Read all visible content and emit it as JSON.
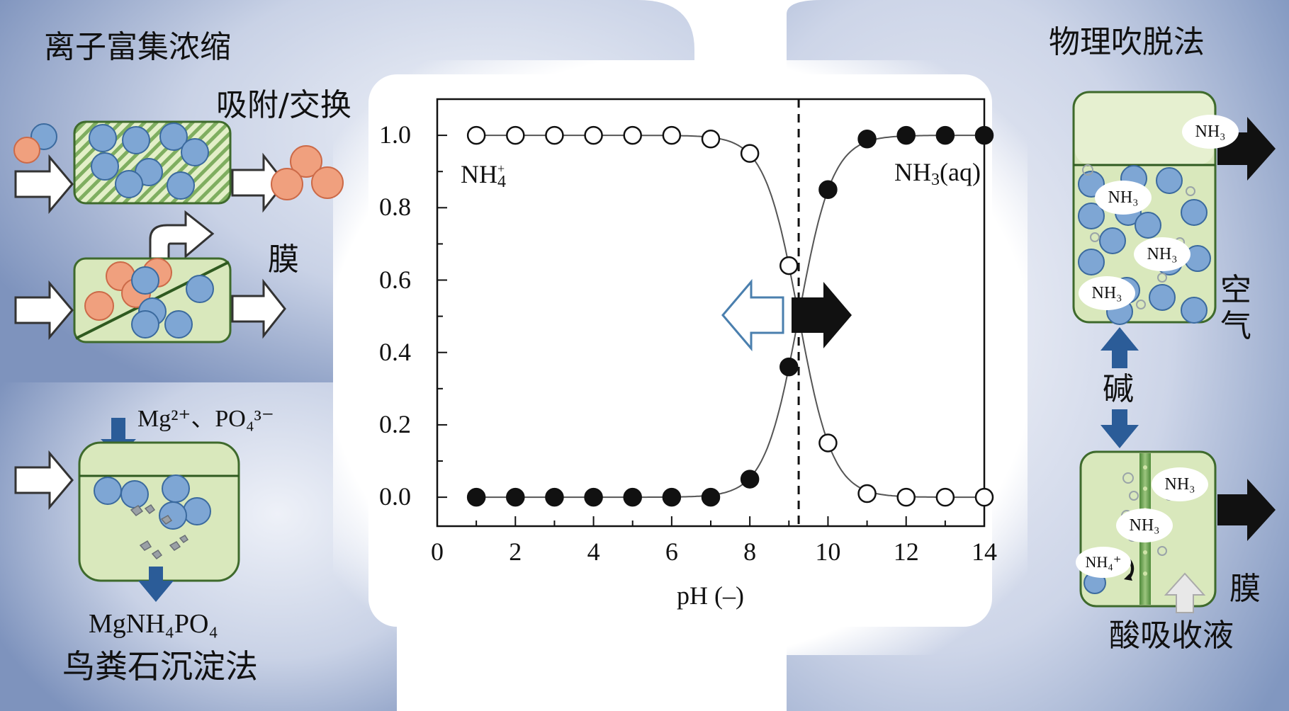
{
  "panels": {
    "ion_enrichment": {
      "title": "离子富集浓缩",
      "adsorption_label": "吸附/交换",
      "membrane_label": "膜"
    },
    "struvite": {
      "reagents": "Mg²⁺、PO₄³⁻",
      "product": "MgNH₄PO₄",
      "title": "鸟粪石沉淀法"
    },
    "stripping": {
      "title": "物理吹脱法",
      "air_label": "空气",
      "base_label": "碱",
      "membrane_label": "膜",
      "acid_label": "酸吸收液",
      "ammonia_tag": "NH₃",
      "ammonium_tag": "NH₄⁺"
    }
  },
  "chart_data": {
    "type": "scatter",
    "xlabel": "pH (–)",
    "ylabel": "",
    "xlim": [
      0,
      14
    ],
    "ylim": [
      -0.08,
      1.1
    ],
    "x_ticks": [
      0,
      2,
      4,
      6,
      8,
      10,
      12,
      14
    ],
    "y_ticks": [
      0.0,
      0.2,
      0.4,
      0.6,
      0.8,
      1.0
    ],
    "y_tick_labels": [
      "0.0",
      "0.2",
      "0.4",
      "0.6",
      "0.8",
      "1.0"
    ],
    "pKa_line": 9.25,
    "series": [
      {
        "name": "NH₄⁺",
        "marker": "open-circle",
        "x": [
          1,
          2,
          3,
          4,
          5,
          6,
          7,
          8,
          9,
          10,
          11,
          12,
          13,
          14
        ],
        "y": [
          1.0,
          1.0,
          1.0,
          1.0,
          1.0,
          1.0,
          0.99,
          0.95,
          0.64,
          0.15,
          0.01,
          0.0,
          0.0,
          0.0
        ]
      },
      {
        "name": "NH₃(aq)",
        "marker": "filled-circle",
        "x": [
          1,
          2,
          3,
          4,
          5,
          6,
          7,
          8,
          9,
          10,
          11,
          12,
          13,
          14
        ],
        "y": [
          0.0,
          0.0,
          0.0,
          0.0,
          0.0,
          0.0,
          0.0,
          0.05,
          0.36,
          0.85,
          0.99,
          1.0,
          1.0,
          1.0
        ]
      }
    ],
    "legend": "inline labels top-left and top-right"
  }
}
